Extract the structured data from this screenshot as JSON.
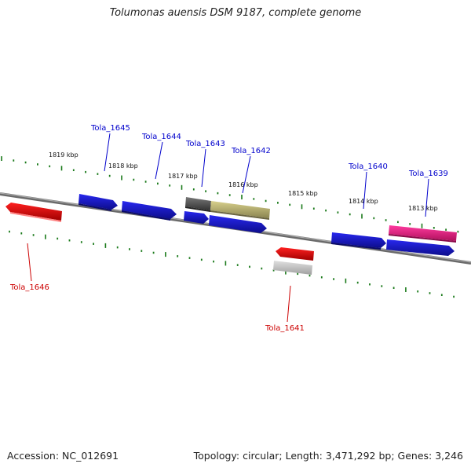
{
  "title": "Tolumonas auensis DSM 9187, complete genome",
  "footer": {
    "accession": "Accession: NC_012691",
    "summary": "Topology: circular; Length: 3,471,292 bp; Genes: 3,246"
  },
  "scale_labels": [
    "1819 kbp",
    "1818 kbp",
    "1817 kbp",
    "1816 kbp",
    "1815 kbp",
    "1814 kbp",
    "1813 kbp"
  ],
  "genes": [
    {
      "name": "Tola_1645",
      "strand": "upper",
      "color": "#1a1adc"
    },
    {
      "name": "Tola_1644",
      "strand": "upper",
      "color": "#1a1adc"
    },
    {
      "name": "Tola_1643",
      "strand": "upper",
      "color": "#555555"
    },
    {
      "name": "Tola_1642",
      "strand": "upper",
      "color": "#b8b070"
    },
    {
      "name": "Tola_1640",
      "strand": "upper",
      "color": "#1a1adc"
    },
    {
      "name": "Tola_1639",
      "strand": "upper",
      "color": "#e0157a"
    },
    {
      "name": "Tola_1646",
      "strand": "lower",
      "color": "#e01010"
    },
    {
      "name": "Tola_1641",
      "strand": "lower",
      "color": "#e01010"
    }
  ],
  "colors": {
    "backbone": "#808080",
    "scale_ticks": "#1a7a1a",
    "upper_label": "#0000cc",
    "lower_label": "#cc0000"
  }
}
